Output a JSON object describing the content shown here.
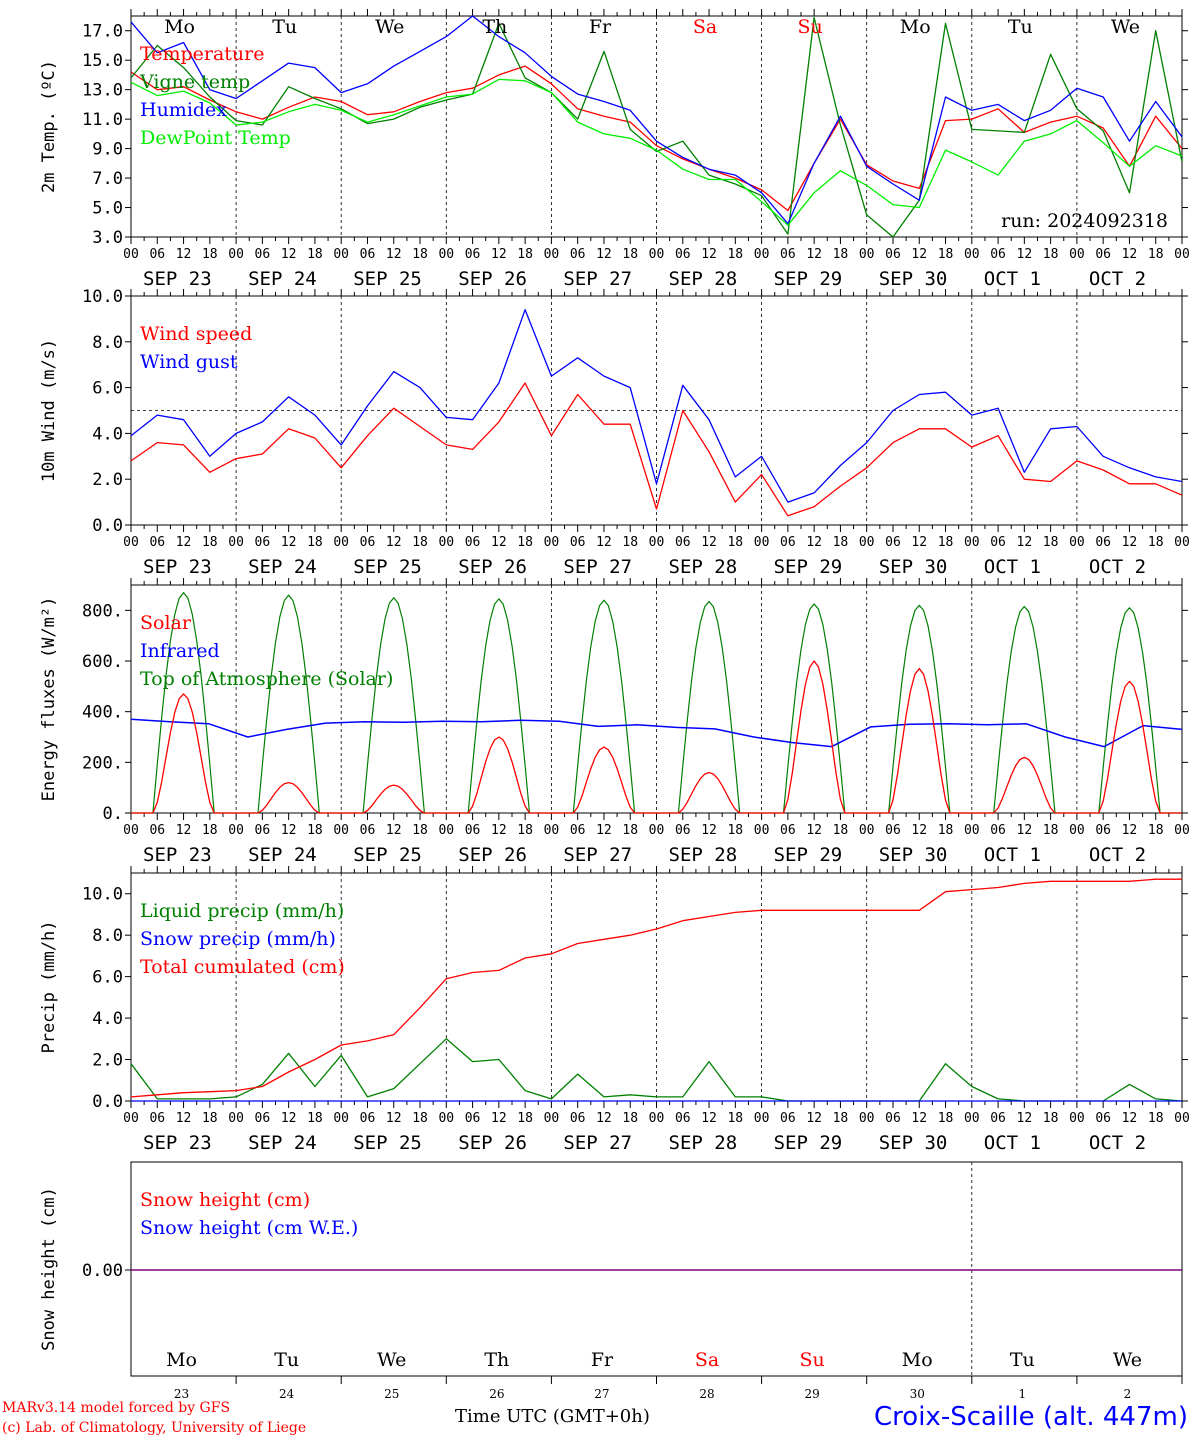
{
  "colors": {
    "red": "#ff0000",
    "green": "#008000",
    "blue": "#0000ff",
    "lightgreen": "#00ee00",
    "purple": "#800080",
    "axis": "#000000"
  },
  "days": [
    "Mo",
    "Tu",
    "We",
    "Th",
    "Fr",
    "Sa",
    "Su",
    "Mo",
    "Tu",
    "We"
  ],
  "weekend_day_indices": [
    5,
    6
  ],
  "date_labels": [
    "SEP 23",
    "SEP 24",
    "SEP 25",
    "SEP 26",
    "SEP 27",
    "SEP 28",
    "SEP 29",
    "SEP 30",
    "OCT  1",
    "OCT  2"
  ],
  "day_numbers": [
    "23",
    "24",
    "25",
    "26",
    "27",
    "28",
    "29",
    "30",
    "1",
    "2"
  ],
  "hour_ticks": [
    "00",
    "06",
    "12",
    "18"
  ],
  "run_label": "run: 2024092318",
  "footer": {
    "credit1": "MARv3.14 model forced by GFS",
    "credit2": "(c) Lab. of Climatology, University of Liege",
    "time_label": "Time UTC (GMT+0h)",
    "station": "Croix-Scaille (alt. 447m)"
  },
  "chart_data": [
    {
      "type": "line",
      "ylabel": "2m Temp. (ºC)",
      "ylim": [
        3,
        18
      ],
      "yticks": [
        "3.0",
        "5.0",
        "7.0",
        "9.0",
        "11.0",
        "13.0",
        "15.0",
        "17.0"
      ],
      "ytick_values": [
        3,
        5,
        7,
        9,
        11,
        13,
        15,
        17
      ],
      "x_hours": [
        0,
        6,
        12,
        18,
        24,
        30,
        36,
        42,
        48,
        54,
        60,
        66,
        72,
        78,
        84,
        90,
        96,
        102,
        108,
        114,
        120,
        126,
        132,
        138,
        144,
        150,
        156,
        162,
        168,
        174,
        180,
        186,
        192,
        198,
        204,
        210,
        216,
        222,
        228,
        234,
        240
      ],
      "series": [
        {
          "name": "Temperature",
          "color": "red",
          "values": [
            14.2,
            13.0,
            13.2,
            12.3,
            11.5,
            11.0,
            11.8,
            12.5,
            12.2,
            11.3,
            11.5,
            12.2,
            12.8,
            13.1,
            14.0,
            14.6,
            13.4,
            11.7,
            11.2,
            10.8,
            9.2,
            8.3,
            7.6,
            7.0,
            6.2,
            4.8,
            8.0,
            11.0,
            7.9,
            6.8,
            6.3,
            10.9,
            11.0,
            11.7,
            10.1,
            10.8,
            11.2,
            10.4,
            7.8,
            11.2,
            9.0
          ]
        },
        {
          "name": "Vigne temp",
          "color": "green",
          "values": [
            13.8,
            16.0,
            14.5,
            12.5,
            10.9,
            10.6,
            13.2,
            12.4,
            11.7,
            10.7,
            11.0,
            11.8,
            12.3,
            12.7,
            17.5,
            13.8,
            12.8,
            11.0,
            15.6,
            10.3,
            8.8,
            9.5,
            7.2,
            6.6,
            5.8,
            3.2,
            17.9,
            10.6,
            4.5,
            3.0,
            5.5,
            17.5,
            10.3,
            10.2,
            10.1,
            15.4,
            11.7,
            10.2,
            6.0,
            17.0,
            8.1
          ]
        },
        {
          "name": "Humidex",
          "color": "blue",
          "values": [
            17.6,
            15.5,
            16.2,
            13.0,
            12.4,
            13.6,
            14.8,
            14.5,
            12.8,
            13.4,
            14.6,
            15.6,
            16.6,
            18.0,
            16.6,
            15.5,
            13.9,
            12.7,
            12.2,
            11.6,
            9.5,
            8.4,
            7.6,
            7.2,
            6.0,
            3.9,
            8.0,
            11.2,
            7.8,
            6.6,
            5.5,
            12.5,
            11.6,
            12.0,
            10.9,
            11.6,
            13.1,
            12.5,
            9.5,
            12.2,
            9.8
          ]
        },
        {
          "name": "DewPoint Temp",
          "color": "lightgreen",
          "values": [
            13.5,
            12.6,
            12.9,
            12.1,
            10.6,
            10.8,
            11.5,
            12.0,
            11.6,
            10.8,
            11.3,
            11.9,
            12.5,
            12.7,
            13.7,
            13.6,
            12.8,
            10.8,
            10.0,
            9.7,
            8.9,
            7.6,
            6.9,
            6.9,
            5.4,
            3.8,
            6.0,
            7.5,
            6.5,
            5.2,
            5.0,
            8.9,
            8.1,
            7.2,
            9.5,
            10.0,
            10.9,
            9.4,
            7.8,
            9.2,
            8.5
          ]
        }
      ],
      "legend": [
        {
          "name": "Temperature",
          "color": "red"
        },
        {
          "name": "Vigne temp",
          "color": "green"
        },
        {
          "name": "Humidex",
          "color": "blue"
        },
        {
          "name": "DewPoint Temp",
          "color": "lightgreen"
        }
      ],
      "legend_position": "top-left"
    },
    {
      "type": "line",
      "ylabel": "10m Wind (m/s)",
      "ylim": [
        0,
        10
      ],
      "yticks": [
        "0.0",
        "2.0",
        "4.0",
        "6.0",
        "8.0",
        "10.0"
      ],
      "ytick_values": [
        0,
        2,
        4,
        6,
        8,
        10
      ],
      "reference_line": 5.0,
      "x_hours": [
        0,
        6,
        12,
        18,
        24,
        30,
        36,
        42,
        48,
        54,
        60,
        66,
        72,
        78,
        84,
        90,
        96,
        102,
        108,
        114,
        120,
        126,
        132,
        138,
        144,
        150,
        156,
        162,
        168,
        174,
        180,
        186,
        192,
        198,
        204,
        210,
        216,
        222,
        228,
        234,
        240
      ],
      "series": [
        {
          "name": "Wind speed",
          "color": "red",
          "values": [
            2.8,
            3.6,
            3.5,
            2.3,
            2.9,
            3.1,
            4.2,
            3.8,
            2.5,
            3.9,
            5.1,
            4.3,
            3.5,
            3.3,
            4.5,
            6.2,
            3.9,
            5.7,
            4.4,
            4.4,
            0.7,
            5.0,
            3.2,
            1.0,
            2.2,
            0.4,
            0.8,
            1.7,
            2.5,
            3.6,
            4.2,
            4.2,
            3.4,
            3.9,
            2.0,
            1.9,
            2.8,
            2.4,
            1.8,
            1.8,
            1.3
          ]
        },
        {
          "name": "Wind gust",
          "color": "blue",
          "values": [
            3.9,
            4.8,
            4.6,
            3.0,
            4.0,
            4.5,
            5.6,
            4.8,
            3.5,
            5.2,
            6.7,
            6.0,
            4.7,
            4.6,
            6.2,
            9.4,
            6.5,
            7.3,
            6.5,
            6.0,
            1.8,
            6.1,
            4.6,
            2.1,
            3.0,
            1.0,
            1.4,
            2.6,
            3.6,
            5.0,
            5.7,
            5.8,
            4.8,
            5.1,
            2.3,
            4.2,
            4.3,
            3.0,
            2.5,
            2.1,
            1.9
          ]
        }
      ],
      "legend": [
        {
          "name": "Wind speed",
          "color": "red"
        },
        {
          "name": "Wind gust",
          "color": "blue"
        }
      ],
      "legend_position": "top-left"
    },
    {
      "type": "line",
      "ylabel": "Energy fluxes (W/m²)",
      "ylim": [
        0,
        900
      ],
      "yticks": [
        "0.",
        "200.",
        "400.",
        "600.",
        "800."
      ],
      "ytick_values": [
        0,
        200,
        400,
        600,
        800
      ],
      "toa_peaks": [
        870,
        860,
        850,
        845,
        840,
        835,
        825,
        820,
        815,
        810
      ],
      "solar_peaks": [
        470,
        120,
        110,
        300,
        260,
        160,
        600,
        570,
        220,
        520
      ],
      "infrared": [
        370,
        360,
        352,
        300,
        330,
        355,
        360,
        358,
        362,
        360,
        366,
        362,
        342,
        348,
        338,
        332,
        300,
        278,
        262,
        340,
        350,
        352,
        348,
        352,
        300,
        262,
        345,
        330
      ],
      "legend": [
        {
          "name": "Solar",
          "color": "red"
        },
        {
          "name": "Infrared",
          "color": "blue"
        },
        {
          "name": "Top of Atmosphere (Solar)",
          "color": "green"
        }
      ],
      "legend_position": "top-left"
    },
    {
      "type": "line",
      "ylabel": "Precip (mm/h)",
      "ylim": [
        0,
        11
      ],
      "yticks": [
        "0.0",
        "2.0",
        "4.0",
        "6.0",
        "8.0",
        "10.0"
      ],
      "ytick_values": [
        0,
        2,
        4,
        6,
        8,
        10
      ],
      "x_hours": [
        0,
        6,
        12,
        18,
        24,
        30,
        36,
        42,
        48,
        54,
        60,
        66,
        72,
        78,
        84,
        90,
        96,
        102,
        108,
        114,
        120,
        126,
        132,
        138,
        144,
        150,
        156,
        162,
        168,
        174,
        180,
        186,
        192,
        198,
        204,
        210,
        216,
        222,
        228,
        234,
        240
      ],
      "series": [
        {
          "name": "Liquid precip (mm/h)",
          "color": "green",
          "values": [
            1.8,
            0.1,
            0.1,
            0.1,
            0.2,
            0.8,
            2.3,
            0.7,
            2.2,
            0.2,
            0.6,
            1.8,
            3.0,
            1.9,
            2.0,
            0.5,
            0.1,
            1.3,
            0.2,
            0.3,
            0.2,
            0.2,
            1.9,
            0.2,
            0.2,
            0.0,
            0.0,
            0.0,
            0.0,
            0.0,
            0.0,
            1.8,
            0.7,
            0.1,
            0.0,
            0.0,
            0.0,
            0.0,
            0.8,
            0.1,
            0.0
          ]
        },
        {
          "name": "Snow precip (mm/h)",
          "color": "blue",
          "values": [
            0,
            0,
            0,
            0,
            0,
            0,
            0,
            0,
            0,
            0,
            0,
            0,
            0,
            0,
            0,
            0,
            0,
            0,
            0,
            0,
            0,
            0,
            0,
            0,
            0,
            0,
            0,
            0,
            0,
            0,
            0,
            0,
            0,
            0,
            0,
            0,
            0,
            0,
            0,
            0,
            0
          ]
        },
        {
          "name": "Total cumulated (cm)",
          "color": "red",
          "values": [
            0.2,
            0.3,
            0.4,
            0.45,
            0.5,
            0.7,
            1.4,
            2.0,
            2.7,
            2.9,
            3.2,
            4.5,
            5.9,
            6.2,
            6.3,
            6.9,
            7.1,
            7.6,
            7.8,
            8.0,
            8.3,
            8.7,
            8.9,
            9.1,
            9.2,
            9.2,
            9.2,
            9.2,
            9.2,
            9.2,
            9.2,
            10.1,
            10.2,
            10.3,
            10.5,
            10.6,
            10.6,
            10.6,
            10.6,
            10.7,
            10.7
          ]
        }
      ],
      "legend": [
        {
          "name": "Liquid precip (mm/h)",
          "color": "green"
        },
        {
          "name": "Snow precip (mm/h)",
          "color": "blue"
        },
        {
          "name": "Total cumulated (cm)",
          "color": "red"
        }
      ],
      "legend_position": "top-left"
    },
    {
      "type": "line",
      "ylabel": "Snow height (cm)",
      "yticks": [
        "0.00"
      ],
      "ytick_values": [
        0
      ],
      "series": [
        {
          "name": "Snow height (cm)",
          "color": "red",
          "values": [
            0,
            0
          ]
        },
        {
          "name": "Snow height (cm W.E.)",
          "color": "blue",
          "values": [
            0,
            0
          ]
        }
      ],
      "legend": [
        {
          "name": "Snow height (cm)",
          "color": "red"
        },
        {
          "name": "Snow height (cm W.E.)",
          "color": "blue"
        }
      ],
      "legend_position": "top-left"
    }
  ]
}
